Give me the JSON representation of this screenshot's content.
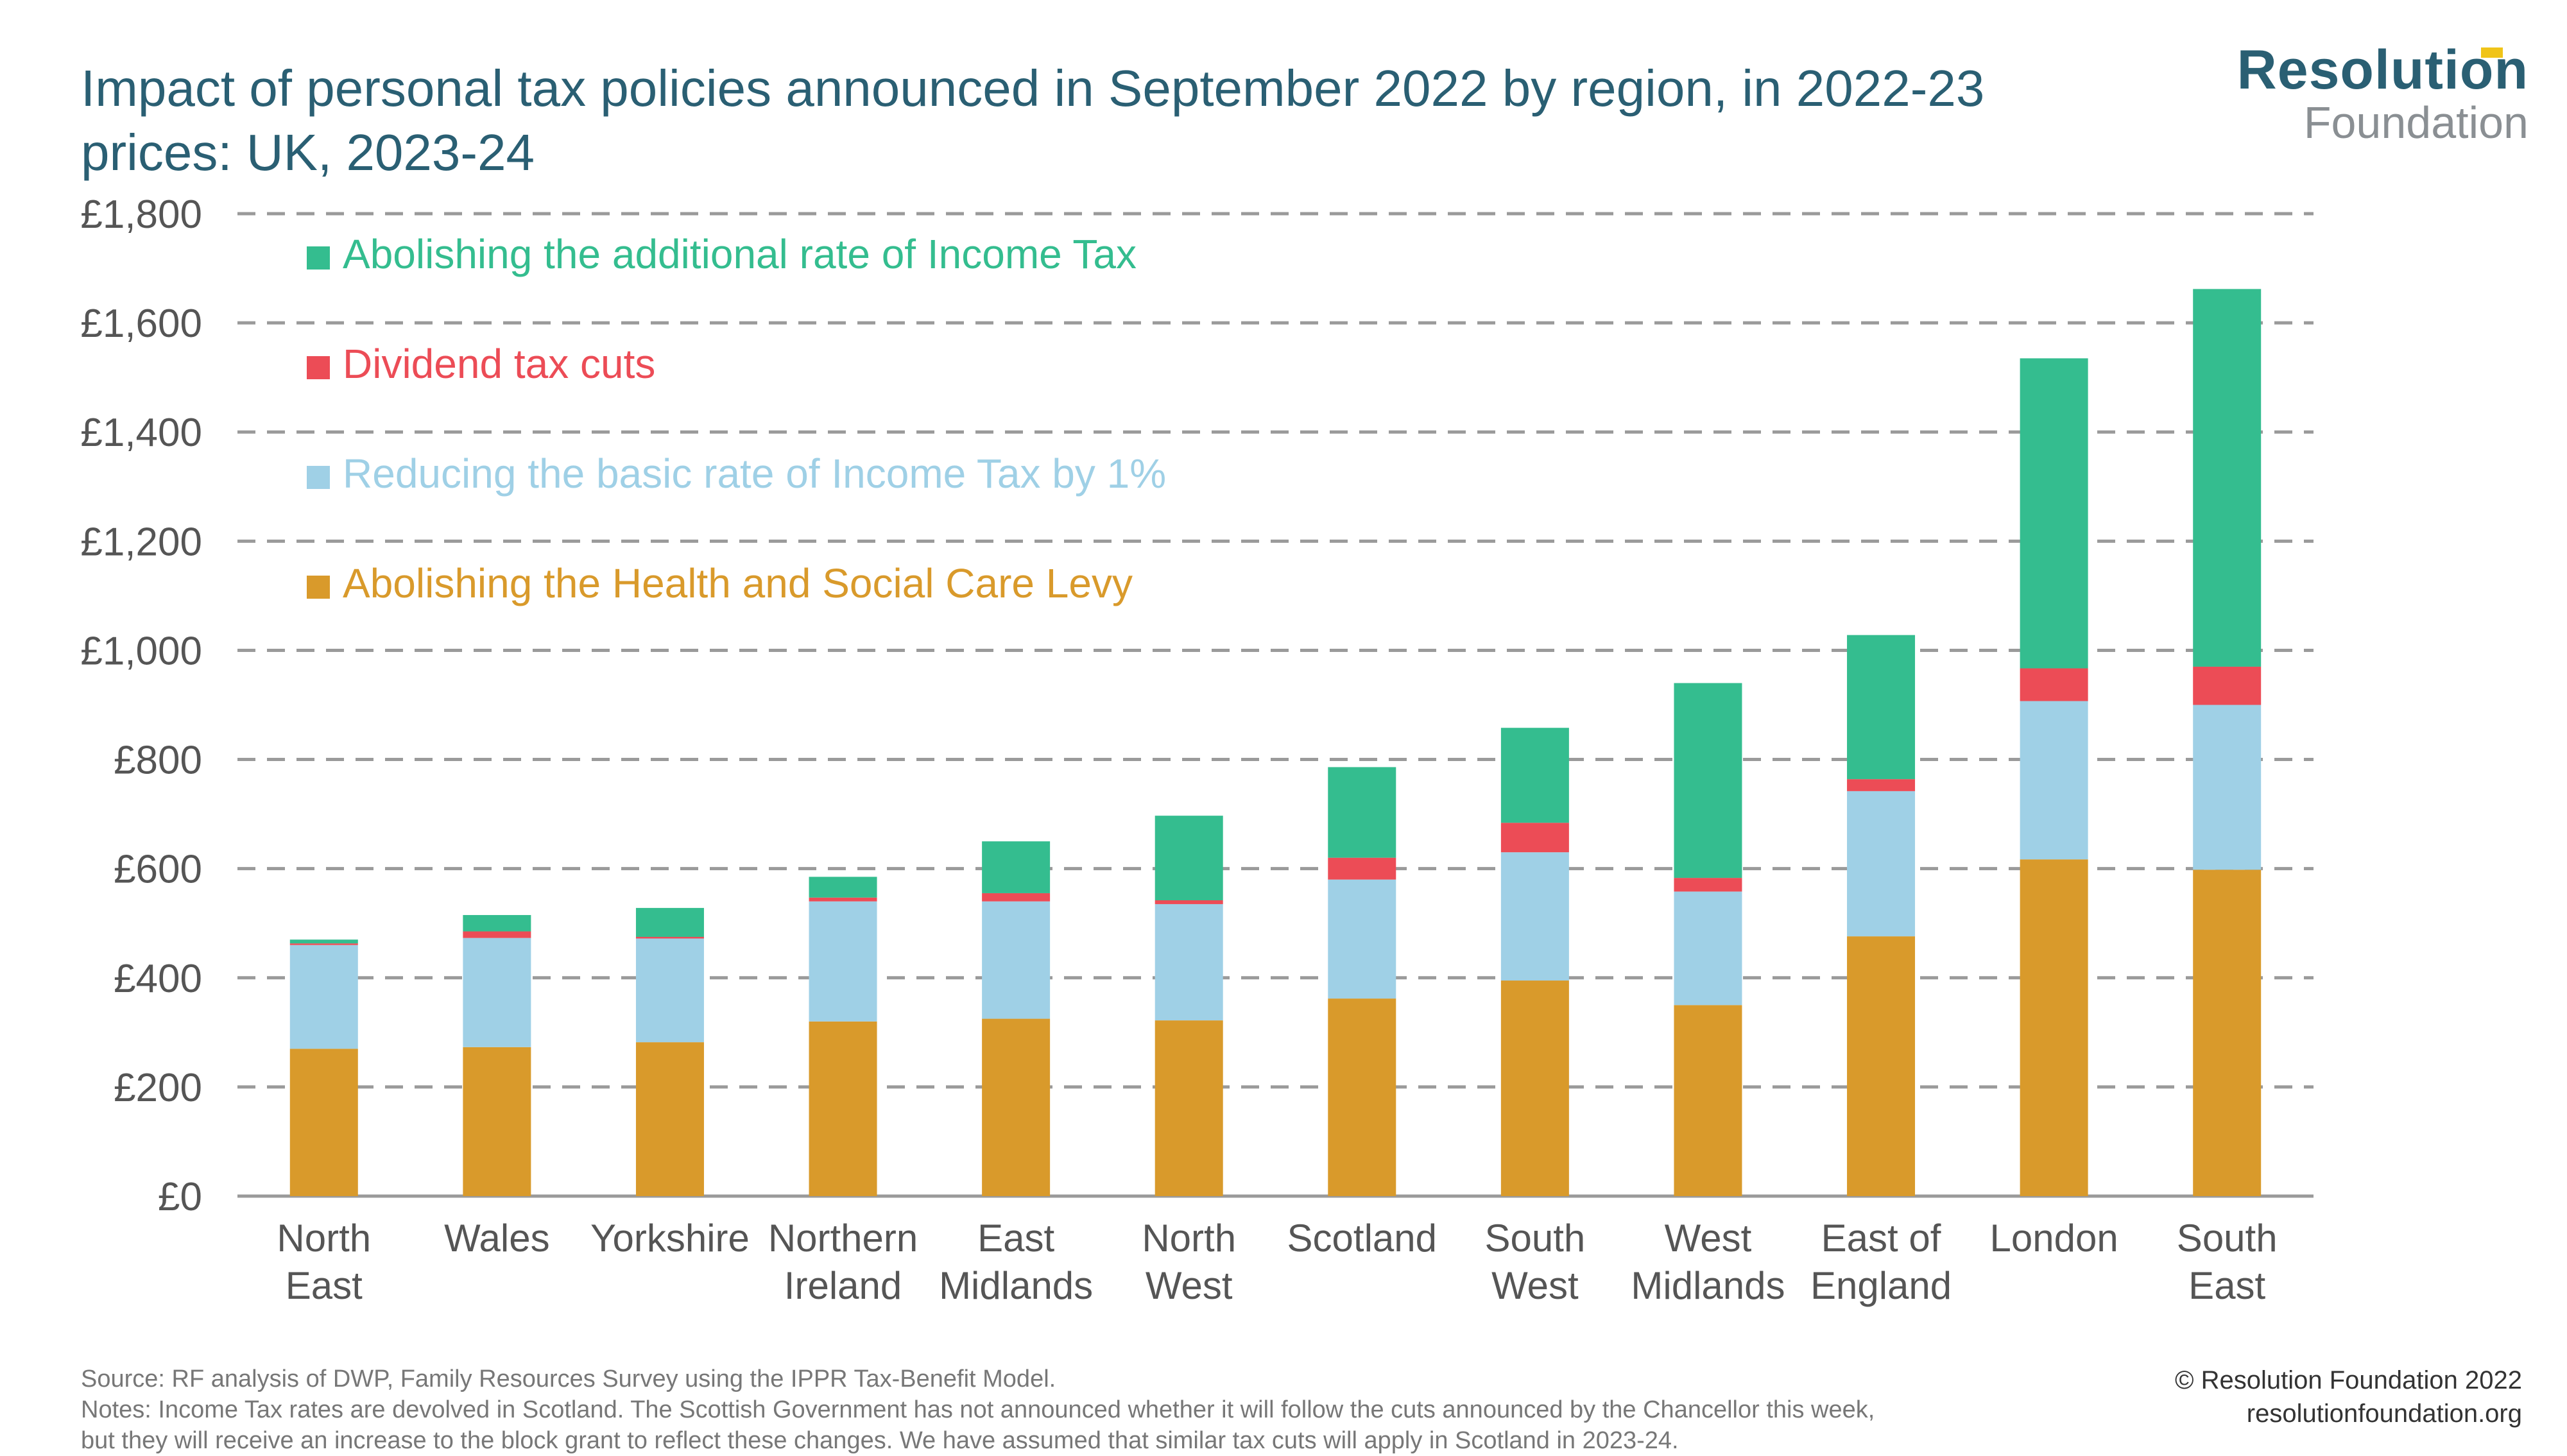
{
  "title": "Impact of personal tax policies announced in September 2022 by region, in 2022-23 prices: UK, 2023-24",
  "logo": {
    "main": "Resolution",
    "sub": "Foundation"
  },
  "chart_data": {
    "type": "bar",
    "stacked": true,
    "title": "Impact of personal tax policies announced in September 2022 by region, in 2022-23 prices: UK, 2023-24",
    "xlabel": "",
    "ylabel": "",
    "ylim": [
      0,
      1800
    ],
    "yticks": [
      0,
      200,
      400,
      600,
      800,
      1000,
      1200,
      1400,
      1600,
      1800
    ],
    "ytick_labels": [
      "£0",
      "£200",
      "£400",
      "£600",
      "£800",
      "£1,000",
      "£1,200",
      "£1,400",
      "£1,600",
      "£1,800"
    ],
    "grid": true,
    "legend_position": "top-left",
    "categories": [
      [
        "North",
        "East"
      ],
      [
        "Wales"
      ],
      [
        "Yorkshire"
      ],
      [
        "Northern",
        "Ireland"
      ],
      [
        "East",
        "Midlands"
      ],
      [
        "North",
        "West"
      ],
      [
        "Scotland"
      ],
      [
        "South",
        "West"
      ],
      [
        "West",
        "Midlands"
      ],
      [
        "East of",
        "England"
      ],
      [
        "London"
      ],
      [
        "South",
        "East"
      ]
    ],
    "series": [
      {
        "name": "Abolishing the Health and Social Care Levy",
        "color": "#d99a2b",
        "values": [
          270,
          273,
          282,
          320,
          325,
          322,
          362,
          395,
          350,
          476,
          617,
          598
        ]
      },
      {
        "name": "Reducing the basic rate of Income Tax by 1%",
        "color": "#9fd0e6",
        "values": [
          190,
          200,
          190,
          220,
          215,
          213,
          218,
          235,
          208,
          266,
          290,
          302
        ]
      },
      {
        "name": "Dividend tax cuts",
        "color": "#ec4c56",
        "values": [
          3,
          12,
          3,
          7,
          15,
          7,
          40,
          54,
          25,
          22,
          60,
          70
        ]
      },
      {
        "name": "Abolishing the additional rate of Income Tax",
        "color": "#34bd8f",
        "values": [
          7,
          30,
          53,
          38,
          95,
          155,
          166,
          174,
          357,
          264,
          568,
          692
        ]
      }
    ]
  },
  "footer": {
    "source": "Source: RF analysis of DWP, Family Resources Survey using the IPPR Tax-Benefit Model.",
    "notes1": "Notes: Income Tax rates are devolved in Scotland. The Scottish Government has not announced whether it will follow the cuts announced by the Chancellor this week,",
    "notes2": "but they will receive an increase to the block grant to reflect these changes. We have assumed that similar tax cuts will apply in Scotland in 2023-24.",
    "copyright": "© Resolution Foundation 2022",
    "website": "resolutionfoundation.org"
  }
}
